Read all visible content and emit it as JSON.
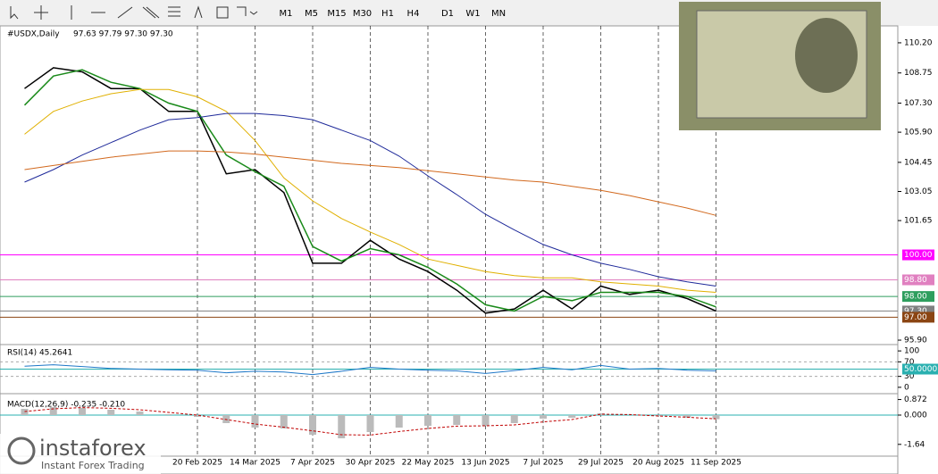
{
  "toolbar": {
    "timeframes": [
      "M1",
      "M5",
      "M15",
      "M30",
      "H1",
      "H4",
      "D1",
      "W1",
      "MN"
    ]
  },
  "chart_data": {
    "type": "line",
    "title": "#USDX,Daily",
    "quote": "97.63 97.79 97.30 97.30",
    "categories": [
      null,
      null,
      null,
      null,
      null,
      null,
      "20 Feb 2025",
      null,
      "14 Mar 2025",
      null,
      "7 Apr 2025",
      null,
      "30 Apr 2025",
      null,
      "22 May 2025",
      null,
      "13 Jun 2025",
      null,
      "7 Jul 2025",
      null,
      "29 Jul 2025",
      null,
      "20 Aug 2025",
      null,
      "11 Sep 2025"
    ],
    "series": [
      {
        "color": "#000000",
        "values": [
          108.0,
          109.0,
          108.8,
          108.0,
          108.0,
          106.9,
          106.9,
          103.9,
          104.1,
          103.0,
          99.6,
          99.6,
          100.7,
          99.8,
          99.2,
          98.3,
          97.2,
          97.4,
          98.3,
          97.4,
          98.5,
          98.1,
          98.3,
          97.9,
          97.3
        ]
      },
      {
        "color": "#1a8a1a",
        "values": [
          107.2,
          108.6,
          108.9,
          108.3,
          108.0,
          107.3,
          106.9,
          104.8,
          104.0,
          103.3,
          100.4,
          99.7,
          100.3,
          100.0,
          99.4,
          98.6,
          97.6,
          97.3,
          98.0,
          97.8,
          98.2,
          98.2,
          98.2,
          98.0,
          97.5
        ]
      },
      {
        "color": "#e0b000",
        "values": [
          105.8,
          106.9,
          107.4,
          107.75,
          107.95,
          107.95,
          107.6,
          106.9,
          105.5,
          103.7,
          102.6,
          101.75,
          101.1,
          100.5,
          99.8,
          99.5,
          99.2,
          99.0,
          98.9,
          98.9,
          98.7,
          98.6,
          98.5,
          98.3,
          98.2
        ]
      },
      {
        "color": "#1f2a9a",
        "values": [
          103.5,
          104.1,
          104.8,
          105.4,
          106.0,
          106.5,
          106.6,
          106.8,
          106.8,
          106.7,
          106.5,
          106.0,
          105.5,
          104.75,
          103.8,
          102.9,
          101.95,
          101.2,
          100.5,
          100.0,
          99.6,
          99.3,
          98.95,
          98.7,
          98.5
        ]
      },
      {
        "color": "#d2691e",
        "values": [
          104.1,
          104.3,
          104.5,
          104.7,
          104.85,
          105.0,
          105.0,
          104.95,
          104.85,
          104.7,
          104.55,
          104.4,
          104.3,
          104.2,
          104.05,
          103.9,
          103.75,
          103.6,
          103.5,
          103.3,
          103.1,
          102.85,
          102.55,
          102.25,
          101.9
        ]
      }
    ],
    "ylim": [
      95.73,
      110.97
    ],
    "yticks": [
      {
        "value": 110.2,
        "label": "110.20"
      },
      {
        "value": 108.75,
        "label": "108.75"
      },
      {
        "value": 107.3,
        "label": "107.30"
      },
      {
        "value": 105.9,
        "label": "105.90"
      },
      {
        "value": 104.45,
        "label": "104.45"
      },
      {
        "value": 103.05,
        "label": "103.05"
      },
      {
        "value": 101.65,
        "label": "101.65"
      },
      {
        "value": 95.9,
        "label": "95.90"
      }
    ],
    "levels": [
      {
        "value": 100,
        "label": "100.00",
        "color": "#ff00ff"
      },
      {
        "value": 98.8,
        "label": "98.80",
        "color": "#e080c0"
      },
      {
        "value": 98,
        "label": "98.00",
        "color": "#2e9e5e"
      },
      {
        "value": 97.3,
        "label": "97.30",
        "color": "#808080"
      },
      {
        "value": 97,
        "label": "97.00",
        "color": "#8b4513"
      }
    ]
  },
  "rsi": {
    "title": "RSI(14) 45.2641",
    "color": "#1e78c8",
    "values": [
      58,
      62,
      57,
      52,
      50,
      48,
      47,
      40,
      44,
      42,
      35,
      44,
      55,
      50,
      47,
      45,
      38,
      46,
      55,
      48,
      60,
      50,
      52,
      47,
      45
    ],
    "ylim": [
      -15,
      115
    ],
    "yticks": [
      100,
      70,
      30,
      0
    ],
    "level": {
      "value": 50,
      "label": "50.0000"
    }
  },
  "macd": {
    "title": "MACD(12,26,9) -0.235 -0.210",
    "histogram": [
      0.35,
      0.45,
      0.4,
      0.3,
      0.2,
      0.05,
      -0.1,
      -0.45,
      -0.7,
      -0.75,
      -1.1,
      -1.3,
      -0.95,
      -0.7,
      -0.6,
      -0.55,
      -0.6,
      -0.45,
      -0.2,
      -0.15,
      0.1,
      0.0,
      -0.05,
      -0.15,
      -0.23
    ],
    "signal": [
      0.2,
      0.35,
      0.42,
      0.38,
      0.3,
      0.15,
      0.0,
      -0.25,
      -0.5,
      -0.68,
      -0.88,
      -1.1,
      -1.12,
      -0.92,
      -0.75,
      -0.62,
      -0.6,
      -0.55,
      -0.38,
      -0.25,
      0.05,
      0.03,
      -0.05,
      -0.12,
      -0.21
    ],
    "ylim": [
      -2.25,
      1.1
    ],
    "yticks": [
      0.872,
      {
        "value": 0,
        "label": "0.000"
      },
      -1.64
    ]
  },
  "brand": {
    "name": "instaforex",
    "tagline": "Instant Forex Trading"
  }
}
